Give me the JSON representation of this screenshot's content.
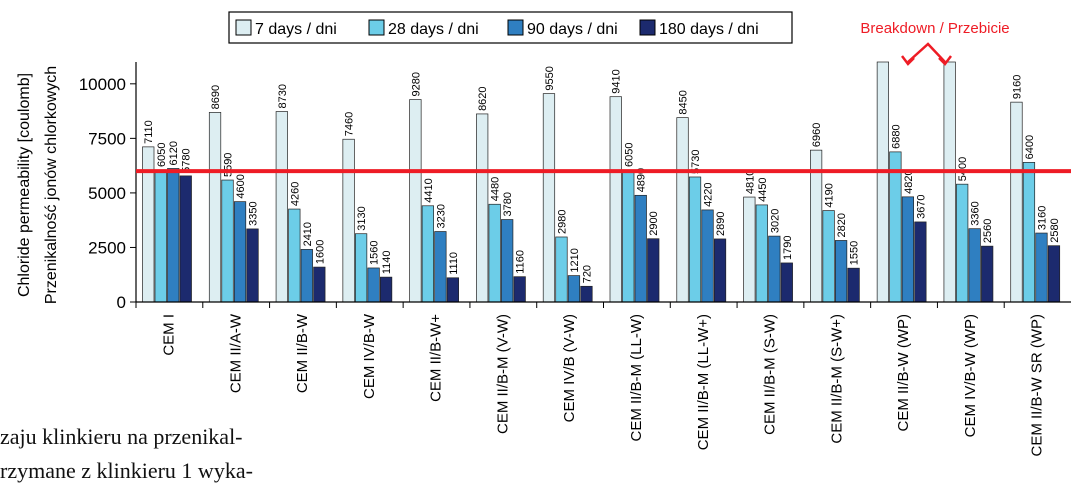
{
  "chart_data": {
    "type": "bar",
    "ylabel_lines": [
      "Chloride permeability [coulomb]",
      "Przenikalność jonów chlorkowych"
    ],
    "ylim": [
      0,
      11000
    ],
    "yticks": [
      0,
      2500,
      5000,
      7500,
      10000
    ],
    "ytick_labels": [
      "0",
      "2500",
      "5000",
      "7500",
      "10000"
    ],
    "legend_position": "top",
    "threshold": {
      "value": 6000,
      "color": "#ee1c25"
    },
    "annotation": {
      "text": "Breakdown / Przebicie",
      "color": "#ee1c25"
    },
    "categories": [
      "CEM I",
      "CEM II/A-W",
      "CEM II/B-W",
      "CEM IV/B-W",
      "CEM II/B-W+",
      "CEM II/B-M (V-W)",
      "CEM IV/B (V-W)",
      "CEM II/B-M (LL-W)",
      "CEM II/B-M (LL-W+)",
      "CEM II/B-M (S-W)",
      "CEM II/B-M (S-W+)",
      "CEM II/B-W (WP)",
      "CEM IV/B-W (WP)",
      "CEM II/B-W SR (WP)"
    ],
    "series": [
      {
        "name": "7 days / dni",
        "color": "#ddeef2",
        "values": [
          7110,
          8690,
          8730,
          7460,
          9280,
          8620,
          9550,
          9410,
          8450,
          4810,
          6960,
          11000,
          11000,
          9160
        ],
        "labels": [
          "7110",
          "8690",
          "8730",
          "7460",
          "9280",
          "8620",
          "9550",
          "9410",
          "8450",
          "4810",
          "6960",
          "",
          "",
          "9160"
        ]
      },
      {
        "name": "28 days / dni",
        "color": "#6ccde8",
        "values": [
          6050,
          5590,
          4260,
          3130,
          4410,
          4480,
          2980,
          6050,
          5730,
          4450,
          4190,
          6880,
          5400,
          6400
        ],
        "labels": [
          "6050",
          "5590",
          "4260",
          "3130",
          "4410",
          "4480",
          "2980",
          "6050",
          "5730",
          "4450",
          "4190",
          "6880",
          "5400",
          "6400"
        ]
      },
      {
        "name": "90 days / dni",
        "color": "#2f7fc1",
        "values": [
          6120,
          4600,
          2410,
          1560,
          3230,
          3780,
          1210,
          4890,
          4220,
          3020,
          2820,
          4820,
          3360,
          3160
        ],
        "labels": [
          "6120",
          "4600",
          "2410",
          "1560",
          "3230",
          "3780",
          "1210",
          "4890",
          "4220",
          "3020",
          "2820",
          "4820",
          "3360",
          "3160"
        ]
      },
      {
        "name": "180 days / dni",
        "color": "#1c2a6e",
        "values": [
          5780,
          3350,
          1600,
          1140,
          1110,
          1160,
          720,
          2900,
          2890,
          1790,
          1550,
          3670,
          2560,
          2580
        ],
        "labels": [
          "5780",
          "3350",
          "1600",
          "1140",
          "1110",
          "1160",
          "720",
          "2900",
          "2890",
          "1790",
          "1550",
          "3670",
          "2560",
          "2580"
        ]
      }
    ]
  },
  "body_text": {
    "line1": "zaju klinkieru na przenikal-",
    "line2": "rzymane z klinkieru 1 wyka-"
  }
}
